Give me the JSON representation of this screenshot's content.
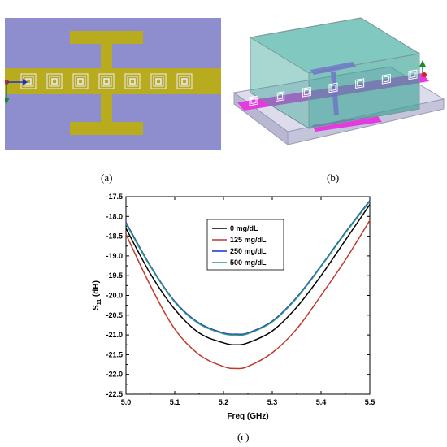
{
  "figure": {
    "caption_a": "(a)",
    "caption_b": "(b)",
    "caption_c": "(c)"
  },
  "colors": {
    "substrate": "#8e8ecf",
    "copper": "#b9ab1e",
    "magenta": "#e53ae0",
    "box": "#3fa79c",
    "grey": "#c8c8dc"
  },
  "chart_data": {
    "type": "line",
    "xlabel": "Freq (GHz)",
    "ylabel_main": "S",
    "ylabel_sub": "11",
    "ylabel_unit": " (dB)",
    "xlim": [
      5.0,
      5.5
    ],
    "ylim": [
      -22.5,
      -17.5
    ],
    "xticks": [
      "5.0",
      "5.1",
      "5.2",
      "5.3",
      "5.4",
      "5.5"
    ],
    "yticks": [
      "-17.5",
      "-18.0",
      "-18.5",
      "-19.0",
      "-19.5",
      "-20.0",
      "-20.5",
      "-21.0",
      "-21.5",
      "-22.0",
      "-22.5"
    ],
    "x": [
      5.0,
      5.05,
      5.1,
      5.15,
      5.2,
      5.225,
      5.25,
      5.3,
      5.35,
      5.4,
      5.45,
      5.5
    ],
    "series": [
      {
        "name": "0 mg/dL",
        "color": "#000000",
        "values": [
          -18.3,
          -19.45,
          -20.35,
          -20.95,
          -21.2,
          -21.25,
          -21.2,
          -20.9,
          -20.3,
          -19.5,
          -18.6,
          -17.7
        ]
      },
      {
        "name": "125 mg/dL",
        "color": "#c0392b",
        "values": [
          -18.45,
          -19.75,
          -20.85,
          -21.5,
          -21.8,
          -21.85,
          -21.8,
          -21.45,
          -20.85,
          -20.0,
          -19.1,
          -18.1
        ]
      },
      {
        "name": "250 mg/dL",
        "color": "#1f2bd8",
        "values": [
          -18.15,
          -19.25,
          -20.15,
          -20.7,
          -20.95,
          -20.98,
          -20.95,
          -20.65,
          -20.05,
          -19.25,
          -18.4,
          -17.6
        ]
      },
      {
        "name": "500 mg/dL",
        "color": "#2e9a78",
        "values": [
          -18.18,
          -19.27,
          -20.17,
          -20.72,
          -20.97,
          -21.0,
          -20.97,
          -20.67,
          -20.07,
          -19.27,
          -18.42,
          -17.62
        ]
      }
    ]
  }
}
